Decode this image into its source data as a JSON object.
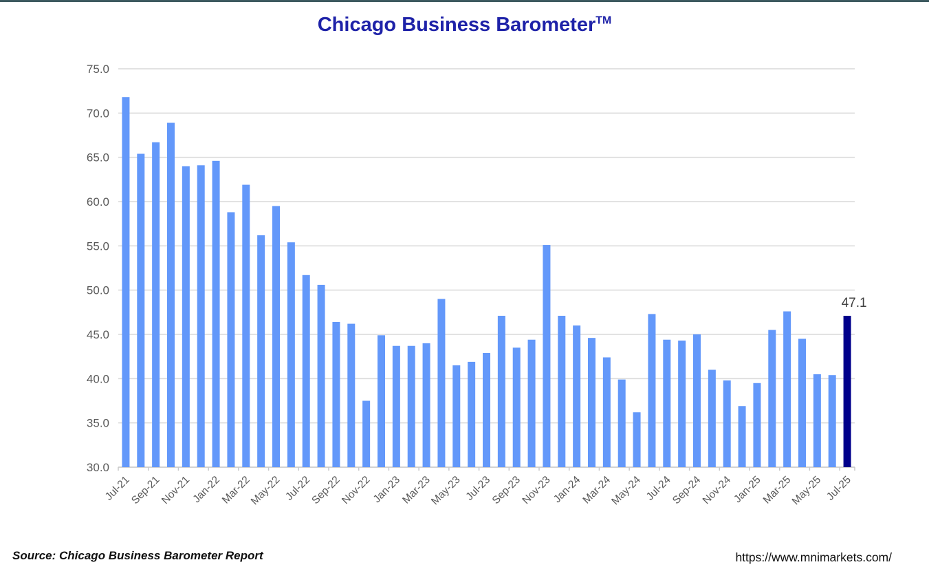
{
  "page": {
    "top_border_color": "#3D5A60",
    "background_color": "#FFFFFF"
  },
  "title": {
    "text": "Chicago Business Barometer",
    "superscript": "TM",
    "color": "#1E22A8"
  },
  "chart_data": {
    "type": "bar",
    "title": "Chicago Business Barometer TM",
    "categories": [
      "Jul-21",
      "Aug-21",
      "Sep-21",
      "Oct-21",
      "Nov-21",
      "Dec-21",
      "Jan-22",
      "Feb-22",
      "Mar-22",
      "Apr-22",
      "May-22",
      "Jun-22",
      "Jul-22",
      "Aug-22",
      "Sep-22",
      "Oct-22",
      "Nov-22",
      "Dec-22",
      "Jan-23",
      "Feb-23",
      "Mar-23",
      "Apr-23",
      "May-23",
      "Jun-23",
      "Jul-23",
      "Aug-23",
      "Sep-23",
      "Oct-23",
      "Nov-23",
      "Dec-23",
      "Jan-24",
      "Feb-24",
      "Mar-24",
      "Apr-24",
      "May-24",
      "Jun-24",
      "Jul-24",
      "Aug-24",
      "Sep-24",
      "Oct-24",
      "Nov-24",
      "Dec-24",
      "Jan-25",
      "Feb-25",
      "Mar-25",
      "Apr-25",
      "May-25",
      "Jun-25",
      "Jul-25"
    ],
    "values": [
      71.8,
      65.4,
      66.7,
      68.9,
      64.0,
      64.1,
      64.6,
      58.8,
      61.9,
      56.2,
      59.5,
      55.4,
      51.7,
      50.6,
      46.4,
      46.2,
      37.5,
      44.9,
      43.7,
      43.7,
      44.0,
      49.0,
      41.5,
      41.9,
      42.9,
      47.1,
      43.5,
      44.4,
      55.1,
      47.1,
      46.0,
      44.6,
      42.4,
      39.9,
      36.2,
      47.3,
      44.4,
      44.3,
      45.0,
      41.0,
      39.8,
      36.9,
      39.5,
      45.5,
      47.6,
      44.5,
      40.5,
      40.4,
      47.1
    ],
    "highlight_index": 48,
    "last_value_label": "47.1",
    "xlabel": "",
    "ylabel": "",
    "ylim": [
      30.0,
      75.0
    ],
    "ytick_step": 5.0,
    "ytick_decimals": 1,
    "xtick_label_every": 2,
    "grid": true,
    "legend_position": "none",
    "bar_color": "#6398FA",
    "highlight_color": "#00008B",
    "gridline_color": "#D9D9D9",
    "axis_line_color": "#C9C9C9",
    "axis_label_color": "#595959",
    "annotation_color": "#404040"
  },
  "footer": {
    "source": "Source: Chicago Business Barometer Report",
    "url": "https://www.mnimarkets.com/"
  }
}
